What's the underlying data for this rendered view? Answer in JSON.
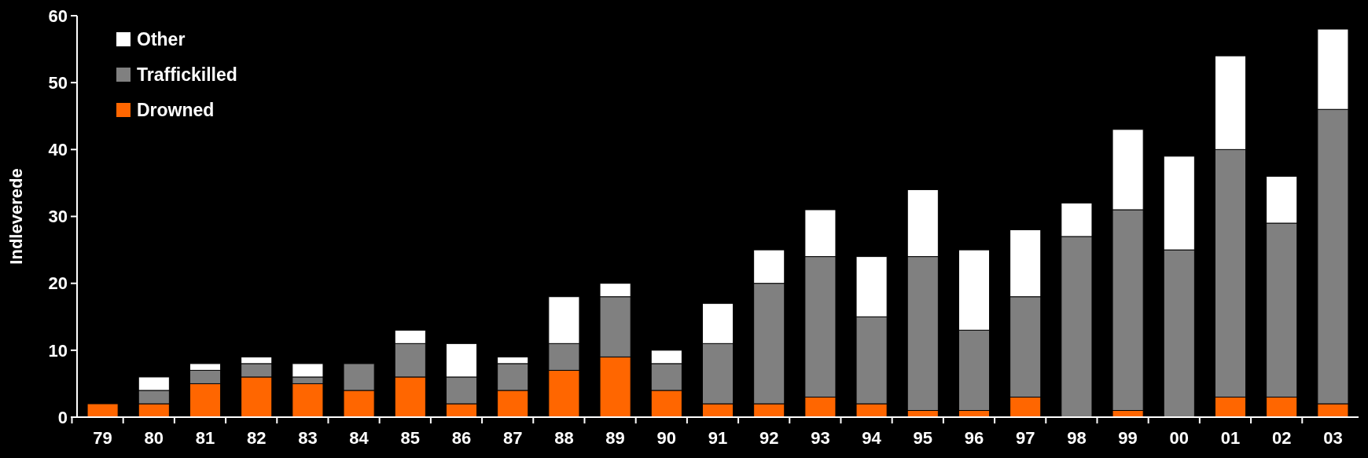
{
  "chart_data": {
    "type": "bar",
    "stacked": true,
    "ylabel": "Indleverede",
    "categories": [
      "79",
      "80",
      "81",
      "82",
      "83",
      "84",
      "85",
      "86",
      "87",
      "88",
      "89",
      "90",
      "91",
      "92",
      "93",
      "94",
      "95",
      "96",
      "97",
      "98",
      "99",
      "00",
      "01",
      "02",
      "03"
    ],
    "series": [
      {
        "name": "Drowned",
        "color": "#ff6600",
        "values": [
          2,
          2,
          5,
          6,
          5,
          4,
          6,
          2,
          4,
          7,
          9,
          4,
          2,
          2,
          3,
          2,
          1,
          1,
          3,
          0,
          1,
          0,
          3,
          3,
          2
        ]
      },
      {
        "name": "Traffickilled",
        "color": "#808080",
        "values": [
          0,
          2,
          2,
          2,
          1,
          4,
          5,
          4,
          4,
          4,
          9,
          4,
          9,
          18,
          21,
          13,
          23,
          12,
          15,
          27,
          30,
          25,
          37,
          26,
          44
        ]
      },
      {
        "name": "Other",
        "color": "#ffffff",
        "values": [
          0,
          2,
          1,
          1,
          2,
          0,
          2,
          5,
          1,
          7,
          2,
          2,
          6,
          5,
          7,
          9,
          10,
          12,
          10,
          5,
          12,
          14,
          14,
          7,
          12
        ]
      }
    ],
    "ylim": [
      0,
      60
    ],
    "yticks": [
      0,
      10,
      20,
      30,
      40,
      50,
      60
    ],
    "grid": false,
    "legend": "top left"
  }
}
